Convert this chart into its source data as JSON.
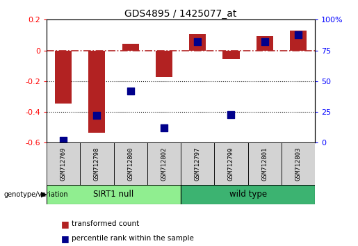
{
  "title": "GDS4895 / 1425077_at",
  "samples": [
    "GSM712769",
    "GSM712798",
    "GSM712800",
    "GSM712802",
    "GSM712797",
    "GSM712799",
    "GSM712801",
    "GSM712803"
  ],
  "transformed_count": [
    -0.345,
    -0.535,
    0.045,
    -0.175,
    0.105,
    -0.055,
    0.095,
    0.13
  ],
  "percentile_rank": [
    2,
    22,
    42,
    12,
    82,
    23,
    82,
    88
  ],
  "groups": [
    {
      "label": "SIRT1 null",
      "start": 0,
      "end": 4,
      "color": "#90EE90"
    },
    {
      "label": "wild type",
      "start": 4,
      "end": 8,
      "color": "#3CB371"
    }
  ],
  "group_label": "genotype/variation",
  "ylim_left": [
    -0.6,
    0.2
  ],
  "ylim_right": [
    0,
    100
  ],
  "yticks_left": [
    -0.6,
    -0.4,
    -0.2,
    0.0,
    0.2
  ],
  "yticks_right": [
    0,
    25,
    50,
    75,
    100
  ],
  "bar_color": "#B22222",
  "dot_color": "#00008B",
  "bar_width": 0.5,
  "dot_size": 55,
  "background_color": "#ffffff",
  "plot_bg_color": "#ffffff",
  "legend_items": [
    "transformed count",
    "percentile rank within the sample"
  ],
  "hline_dotted": [
    -0.2,
    -0.4
  ],
  "left_axis_color": "red",
  "right_axis_color": "blue"
}
